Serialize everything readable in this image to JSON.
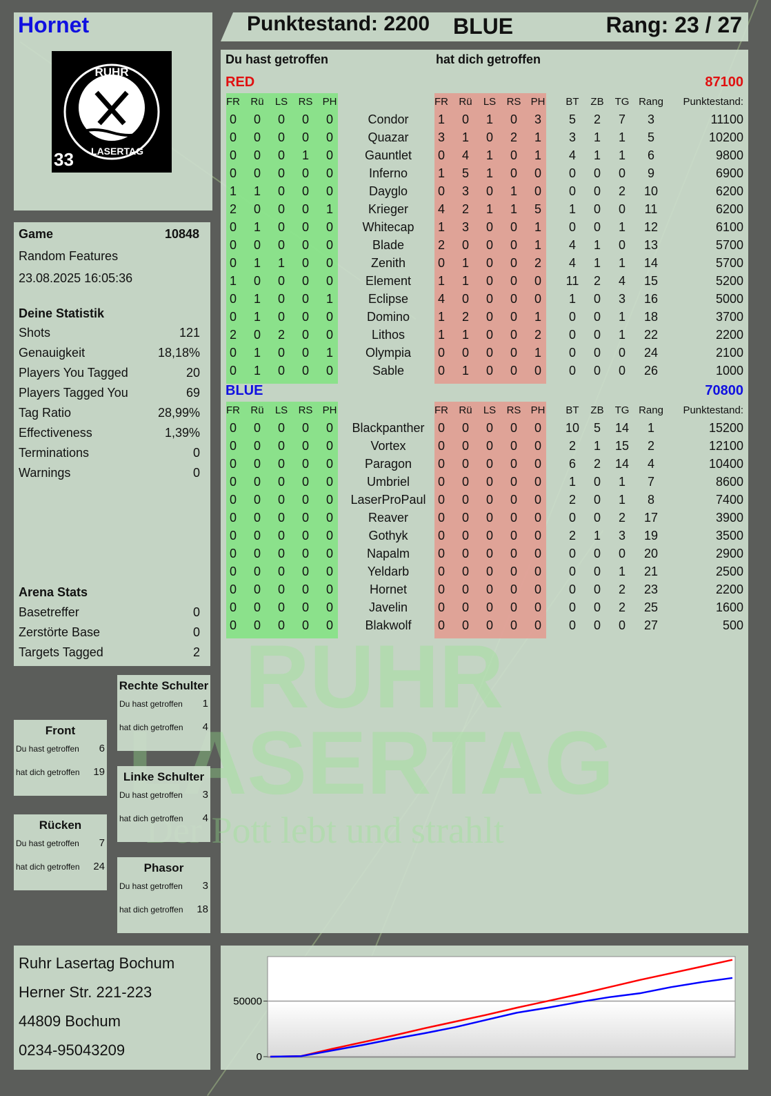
{
  "player": {
    "name": "Hornet",
    "score_label": "Punktestand: 2200",
    "team": "BLUE",
    "rank_label": "Rang: 23 / 27",
    "logo_text": [
      "RUHR",
      "LASERTAG",
      "33"
    ]
  },
  "colors": {
    "red": "#e01010",
    "blue": "#1010e0",
    "hit_green": "#7de67d",
    "hit_red": "#e69a8c",
    "panel": "#cddecd"
  },
  "table": {
    "you_hit_label": "Du hast getroffen",
    "hit_you_label": "hat dich getroffen",
    "headers": [
      "FR",
      "Rü",
      "LS",
      "RS",
      "PH",
      "FR",
      "Rü",
      "LS",
      "RS",
      "PH",
      "BT",
      "ZB",
      "TG",
      "Rang",
      "Punktestand:"
    ],
    "teams": [
      {
        "name": "RED",
        "total": "87100",
        "color": "#e01010",
        "rows": [
          [
            "Condor",
            0,
            0,
            0,
            0,
            0,
            1,
            0,
            1,
            0,
            3,
            5,
            2,
            7,
            3,
            11100
          ],
          [
            "Quazar",
            0,
            0,
            0,
            0,
            0,
            3,
            1,
            0,
            2,
            1,
            3,
            1,
            1,
            5,
            10200
          ],
          [
            "Gauntlet",
            0,
            0,
            0,
            1,
            0,
            0,
            4,
            1,
            0,
            1,
            4,
            1,
            1,
            6,
            9800
          ],
          [
            "Inferno",
            0,
            0,
            0,
            0,
            0,
            1,
            5,
            1,
            0,
            0,
            0,
            0,
            0,
            9,
            6900
          ],
          [
            "Dayglo",
            1,
            1,
            0,
            0,
            0,
            0,
            3,
            0,
            1,
            0,
            0,
            0,
            2,
            10,
            6200
          ],
          [
            "Krieger",
            2,
            0,
            0,
            0,
            1,
            4,
            2,
            1,
            1,
            5,
            1,
            0,
            0,
            11,
            6200
          ],
          [
            "Whitecap",
            0,
            1,
            0,
            0,
            0,
            1,
            3,
            0,
            0,
            1,
            0,
            0,
            1,
            12,
            6100
          ],
          [
            "Blade",
            0,
            0,
            0,
            0,
            0,
            2,
            0,
            0,
            0,
            1,
            4,
            1,
            0,
            13,
            5700
          ],
          [
            "Zenith",
            0,
            1,
            1,
            0,
            0,
            0,
            1,
            0,
            0,
            2,
            4,
            1,
            1,
            14,
            5700
          ],
          [
            "Element",
            1,
            0,
            0,
            0,
            0,
            1,
            1,
            0,
            0,
            0,
            11,
            2,
            4,
            15,
            5200
          ],
          [
            "Eclipse",
            0,
            1,
            0,
            0,
            1,
            4,
            0,
            0,
            0,
            0,
            1,
            0,
            3,
            16,
            5000
          ],
          [
            "Domino",
            0,
            1,
            0,
            0,
            0,
            1,
            2,
            0,
            0,
            1,
            0,
            0,
            1,
            18,
            3700
          ],
          [
            "Lithos",
            2,
            0,
            2,
            0,
            0,
            1,
            1,
            0,
            0,
            2,
            0,
            0,
            1,
            22,
            2200
          ],
          [
            "Olympia",
            0,
            1,
            0,
            0,
            1,
            0,
            0,
            0,
            0,
            1,
            0,
            0,
            0,
            24,
            2100
          ],
          [
            "Sable",
            0,
            1,
            0,
            0,
            0,
            0,
            1,
            0,
            0,
            0,
            0,
            0,
            0,
            26,
            1000
          ]
        ]
      },
      {
        "name": "BLUE",
        "total": "70800",
        "color": "#1010e0",
        "rows": [
          [
            "Blackpanther",
            0,
            0,
            0,
            0,
            0,
            0,
            0,
            0,
            0,
            0,
            10,
            5,
            14,
            1,
            15200
          ],
          [
            "Vortex",
            0,
            0,
            0,
            0,
            0,
            0,
            0,
            0,
            0,
            0,
            2,
            1,
            15,
            2,
            12100
          ],
          [
            "Paragon",
            0,
            0,
            0,
            0,
            0,
            0,
            0,
            0,
            0,
            0,
            6,
            2,
            14,
            4,
            10400
          ],
          [
            "Umbriel",
            0,
            0,
            0,
            0,
            0,
            0,
            0,
            0,
            0,
            0,
            1,
            0,
            1,
            7,
            8600
          ],
          [
            "LaserProPaul",
            0,
            0,
            0,
            0,
            0,
            0,
            0,
            0,
            0,
            0,
            2,
            0,
            1,
            8,
            7400
          ],
          [
            "Reaver",
            0,
            0,
            0,
            0,
            0,
            0,
            0,
            0,
            0,
            0,
            0,
            0,
            2,
            17,
            3900
          ],
          [
            "Gothyk",
            0,
            0,
            0,
            0,
            0,
            0,
            0,
            0,
            0,
            0,
            2,
            1,
            3,
            19,
            3500
          ],
          [
            "Napalm",
            0,
            0,
            0,
            0,
            0,
            0,
            0,
            0,
            0,
            0,
            0,
            0,
            0,
            20,
            2900
          ],
          [
            "Yeldarb",
            0,
            0,
            0,
            0,
            0,
            0,
            0,
            0,
            0,
            0,
            0,
            0,
            1,
            21,
            2500
          ],
          [
            "Hornet",
            0,
            0,
            0,
            0,
            0,
            0,
            0,
            0,
            0,
            0,
            0,
            0,
            2,
            23,
            2200
          ],
          [
            "Javelin",
            0,
            0,
            0,
            0,
            0,
            0,
            0,
            0,
            0,
            0,
            0,
            0,
            2,
            25,
            1600
          ],
          [
            "Blakwolf",
            0,
            0,
            0,
            0,
            0,
            0,
            0,
            0,
            0,
            0,
            0,
            0,
            0,
            27,
            500
          ]
        ]
      }
    ]
  },
  "game": {
    "label": "Game",
    "id": "10848",
    "mode": "Random Features",
    "datetime": "23.08.2025 16:05:36"
  },
  "stats": {
    "title": "Deine Statistik",
    "items": [
      {
        "label": "Shots",
        "value": "121"
      },
      {
        "label": "Genauigkeit",
        "value": "18,18%"
      },
      {
        "label": "Players You Tagged",
        "value": "20"
      },
      {
        "label": "Players Tagged You",
        "value": "69"
      },
      {
        "label": "Tag Ratio",
        "value": "28,99%"
      },
      {
        "label": "Effectiveness",
        "value": "1,39%"
      },
      {
        "label": "Terminations",
        "value": "0"
      },
      {
        "label": "Warnings",
        "value": "0"
      }
    ]
  },
  "arena": {
    "title": "Arena Stats",
    "items": [
      {
        "label": "Basetreffer",
        "value": "0"
      },
      {
        "label": "Zerstörte Base",
        "value": "0"
      },
      {
        "label": "Targets Tagged",
        "value": "2"
      }
    ]
  },
  "zones": [
    {
      "title": "Rechte Schulter",
      "you_hit": "1",
      "hit_you": "4"
    },
    {
      "title": "Front",
      "you_hit": "6",
      "hit_you": "19"
    },
    {
      "title": "Linke Schulter",
      "you_hit": "3",
      "hit_you": "4"
    },
    {
      "title": "Rücken",
      "you_hit": "7",
      "hit_you": "24"
    },
    {
      "title": "Phasor",
      "you_hit": "3",
      "hit_you": "18"
    }
  ],
  "zone_labels": {
    "you_hit": "Du hast getroffen",
    "hit_you": "hat dich getroffen"
  },
  "address": [
    "Ruhr Lasertag Bochum",
    "Herner Str. 221-223",
    "44809 Bochum",
    "0234-95043209"
  ],
  "watermark": {
    "line1": "RUHR",
    "line2": "LASERTAG",
    "line3": "Der Pott lebt und strahlt"
  },
  "chart_data": {
    "type": "line",
    "ylim": [
      0,
      90000
    ],
    "yticks": [
      "0",
      "50000"
    ],
    "grid": true,
    "x": [
      0,
      1,
      2,
      3,
      4,
      5,
      6,
      7,
      8,
      9,
      10,
      11,
      12,
      13,
      14,
      15
    ],
    "series": [
      {
        "color": "#ff0000",
        "values": [
          0,
          500,
          7000,
          13000,
          19000,
          25500,
          31500,
          37500,
          44000,
          50000,
          56000,
          62500,
          69000,
          75000,
          81000,
          87100
        ]
      },
      {
        "color": "#0000ff",
        "values": [
          0,
          500,
          5500,
          10500,
          16000,
          21000,
          26500,
          33000,
          39500,
          44000,
          49000,
          53500,
          57000,
          62500,
          67000,
          70800
        ]
      }
    ]
  }
}
